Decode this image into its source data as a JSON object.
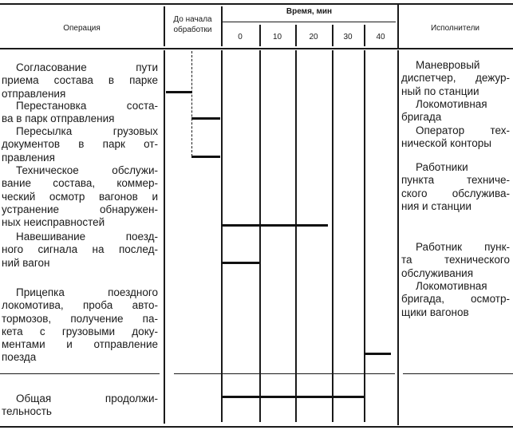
{
  "header": {
    "operation": "Операция",
    "before_start": "До начала обработки",
    "time": "Время, мин",
    "ticks": [
      "0",
      "10",
      "20",
      "30",
      "40"
    ],
    "performers": "Исполнители"
  },
  "operations": [
    {
      "lines": [
        "Согласование пути",
        "приема состава в парке",
        "отправления"
      ]
    },
    {
      "lines": [
        "Перестановка соста-",
        "ва в парк отправления"
      ]
    },
    {
      "lines": [
        "Пересылка грузовых",
        "документов в парк от-",
        "правления"
      ]
    },
    {
      "lines": [
        "Техническое обслужи-",
        "вание состава, коммер-",
        "ческий осмотр вагонов и",
        "устранение обнаружен-",
        "ных неисправностей"
      ]
    },
    {
      "lines": [
        "Навешивание поезд-",
        "ного сигнала на послед-",
        "ний вагон"
      ]
    },
    {
      "lines": [
        "Прицепка поездного",
        "локомотива, проба авто-",
        "тормозов, получение па-",
        "кета с грузовыми доку-",
        "ментами и отправление",
        "поезда"
      ]
    }
  ],
  "total": {
    "lines": [
      "Общая продолжи-",
      "тельность"
    ]
  },
  "performers": [
    {
      "lines": [
        "Маневровый",
        "диспетчер, дежур-",
        "ный по станции"
      ]
    },
    {
      "lines": [
        "Локомотивная",
        "бригада"
      ]
    },
    {
      "lines": [
        "Оператор тех-",
        "нической конторы"
      ]
    },
    {
      "lines": [
        "Работники",
        "пункта техниче-",
        "ского обслужива-",
        "ния и станции"
      ]
    },
    {
      "lines": [
        "Работник пунк-",
        "та технического",
        "обслуживания"
      ]
    },
    {
      "lines": [
        "Локомотивная",
        "бригада, осмотр-",
        "щики вагонов"
      ]
    }
  ]
}
